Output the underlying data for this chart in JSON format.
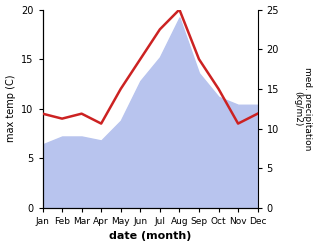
{
  "months": [
    "Jan",
    "Feb",
    "Mar",
    "Apr",
    "May",
    "Jun",
    "Jul",
    "Aug",
    "Sep",
    "Oct",
    "Nov",
    "Dec"
  ],
  "temperature": [
    9.5,
    9.0,
    9.5,
    8.5,
    12.0,
    15.0,
    18.0,
    20.0,
    15.0,
    12.0,
    8.5,
    9.5
  ],
  "precipitation": [
    8.0,
    9.0,
    9.0,
    8.5,
    11.0,
    16.0,
    19.0,
    24.0,
    17.0,
    14.0,
    13.0,
    13.0
  ],
  "temp_ylim": [
    0,
    20
  ],
  "precip_ylim": [
    0,
    25
  ],
  "temp_yticks": [
    0,
    5,
    10,
    15,
    20
  ],
  "precip_yticks": [
    0,
    5,
    10,
    15,
    20,
    25
  ],
  "xlabel": "date (month)",
  "ylabel_left": "max temp (C)",
  "ylabel_right": "med. precipitation\n(kg/m2)",
  "temp_color": "#cc2222",
  "precip_fill_color": "#b8c4ee",
  "line_width": 1.8,
  "bg_color": "#ffffff"
}
